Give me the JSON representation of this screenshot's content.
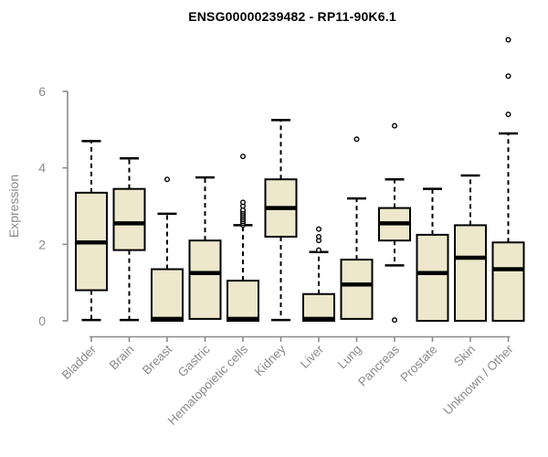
{
  "header": {
    "title": "ENSG00000239482 - RP11-90K6.1"
  },
  "colors": {
    "background": "#FFFFFF",
    "box_fill": "#EDE8CC",
    "box_stroke": "#000000",
    "median": "#000000",
    "whisker": "#000000",
    "axis": "#8A8A8A",
    "tick_label": "#8A8A8A",
    "title": "#000000"
  },
  "chart_data": {
    "type": "boxplot",
    "title": "ENSG00000239482 - RP11-90K6.1",
    "xlabel": "",
    "ylabel": "Expression",
    "ylim": [
      0,
      6
    ],
    "yticks": [
      0,
      2,
      4,
      6
    ],
    "grid": false,
    "legend": false,
    "x_tick_rotation": 45,
    "categories": [
      "Bladder",
      "Brain",
      "Breast",
      "Gastric",
      "Hematopoietic cells",
      "Kidney",
      "Liver",
      "Lung",
      "Pancreas",
      "Prostate",
      "Skin",
      "Unknown / Other"
    ],
    "series": [
      {
        "name": "Bladder",
        "whisker_low": 0.02,
        "q1": 0.8,
        "median": 2.05,
        "q3": 3.35,
        "whisker_high": 4.7,
        "outliers": []
      },
      {
        "name": "Brain",
        "whisker_low": 0.02,
        "q1": 1.85,
        "median": 2.55,
        "q3": 3.45,
        "whisker_high": 4.25,
        "outliers": []
      },
      {
        "name": "Breast",
        "whisker_low": 0.0,
        "q1": 0.0,
        "median": 0.05,
        "q3": 1.35,
        "whisker_high": 2.8,
        "outliers": [
          3.7
        ]
      },
      {
        "name": "Gastric",
        "whisker_low": 0.05,
        "q1": 0.05,
        "median": 1.25,
        "q3": 2.1,
        "whisker_high": 3.75,
        "outliers": []
      },
      {
        "name": "Hematopoietic cells",
        "whisker_low": 0.0,
        "q1": 0.0,
        "median": 0.05,
        "q3": 1.05,
        "whisker_high": 2.5,
        "outliers": [
          2.5,
          2.55,
          2.6,
          2.65,
          2.7,
          2.75,
          2.8,
          2.85,
          2.9,
          3.0,
          3.1,
          4.3
        ]
      },
      {
        "name": "Kidney",
        "whisker_low": 0.02,
        "q1": 2.2,
        "median": 2.95,
        "q3": 3.7,
        "whisker_high": 5.25,
        "outliers": []
      },
      {
        "name": "Liver",
        "whisker_low": 0.0,
        "q1": 0.0,
        "median": 0.05,
        "q3": 0.7,
        "whisker_high": 1.8,
        "outliers": [
          1.85,
          2.1,
          2.2,
          2.4
        ]
      },
      {
        "name": "Lung",
        "whisker_low": 0.05,
        "q1": 0.05,
        "median": 0.95,
        "q3": 1.6,
        "whisker_high": 3.2,
        "outliers": [
          4.75
        ]
      },
      {
        "name": "Pancreas",
        "whisker_low": 1.45,
        "q1": 2.1,
        "median": 2.55,
        "q3": 2.95,
        "whisker_high": 3.7,
        "outliers": [
          0.02,
          5.1
        ]
      },
      {
        "name": "Prostate",
        "whisker_low": 0.0,
        "q1": 0.0,
        "median": 1.25,
        "q3": 2.25,
        "whisker_high": 3.45,
        "outliers": []
      },
      {
        "name": "Skin",
        "whisker_low": 0.0,
        "q1": 0.0,
        "median": 1.65,
        "q3": 2.5,
        "whisker_high": 3.8,
        "outliers": []
      },
      {
        "name": "Unknown / Other",
        "whisker_low": 0.0,
        "q1": 0.0,
        "median": 1.35,
        "q3": 2.05,
        "whisker_high": 4.9,
        "outliers": [
          5.4,
          6.4,
          7.35
        ]
      }
    ]
  }
}
